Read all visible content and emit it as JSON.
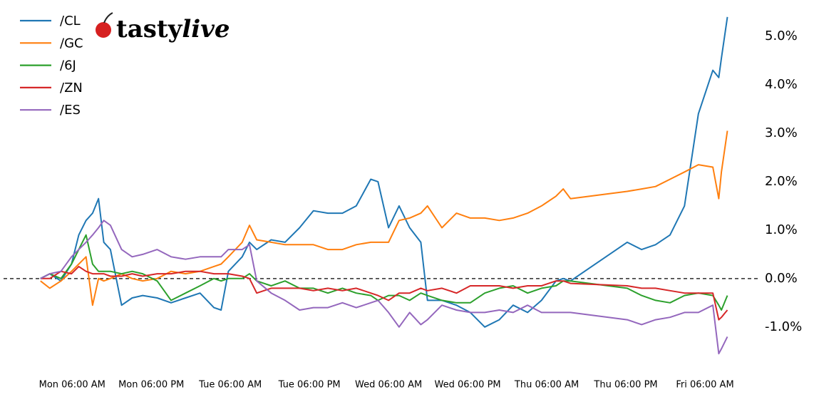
{
  "chart_data": {
    "type": "line",
    "logo": {
      "prefix": "tasty",
      "suffix": "live"
    },
    "x": [
      1.2,
      2.6,
      4.3,
      5.9,
      7.0,
      8.1,
      9.1,
      10.0,
      10.8,
      11.8,
      13.5,
      15.1,
      16.7,
      18.9,
      21.0,
      23.2,
      25.4,
      27.5,
      28.6,
      29.7,
      31.8,
      32.9,
      34.0,
      36.2,
      38.3,
      40.5,
      42.6,
      44.8,
      47.0,
      49.1,
      51.3,
      52.4,
      54.0,
      55.6,
      57.2,
      58.9,
      59.9,
      62.1,
      64.3,
      66.4,
      68.6,
      70.8,
      72.9,
      75.1,
      77.2,
      79.4,
      80.5,
      81.6,
      90.2,
      92.4,
      94.5,
      96.7,
      98.9,
      101.0,
      103.2,
      104.1,
      104.5,
      105.4
    ],
    "series": [
      {
        "name": "/CL",
        "color": "#1f77b4",
        "values": [
          0,
          0.1,
          -0.05,
          0.3,
          0.9,
          1.2,
          1.35,
          1.65,
          0.75,
          0.6,
          -0.55,
          -0.4,
          -0.35,
          -0.4,
          -0.5,
          -0.4,
          -0.3,
          -0.6,
          -0.65,
          0.15,
          0.45,
          0.75,
          0.6,
          0.8,
          0.75,
          1.05,
          1.4,
          1.35,
          1.35,
          1.5,
          2.05,
          2.0,
          1.05,
          1.5,
          1.05,
          0.75,
          -0.45,
          -0.45,
          -0.55,
          -0.7,
          -1.0,
          -0.85,
          -0.55,
          -0.7,
          -0.45,
          -0.05,
          0.0,
          -0.05,
          0.75,
          0.6,
          0.7,
          0.9,
          1.5,
          3.4,
          4.3,
          4.15,
          4.55,
          5.4
        ]
      },
      {
        "name": "/GC",
        "color": "#ff7f0e",
        "values": [
          -0.05,
          -0.2,
          -0.05,
          0.15,
          0.3,
          0.45,
          -0.55,
          0,
          -0.05,
          0,
          0.1,
          0,
          -0.05,
          0,
          0.15,
          0.1,
          0.15,
          0.25,
          0.3,
          0.45,
          0.75,
          1.1,
          0.8,
          0.75,
          0.7,
          0.7,
          0.7,
          0.6,
          0.6,
          0.7,
          0.75,
          0.75,
          0.75,
          1.2,
          1.25,
          1.35,
          1.5,
          1.05,
          1.35,
          1.25,
          1.25,
          1.2,
          1.25,
          1.35,
          1.5,
          1.7,
          1.85,
          1.65,
          1.8,
          1.85,
          1.9,
          2.05,
          2.2,
          2.35,
          2.3,
          1.65,
          2.2,
          3.05
        ]
      },
      {
        "name": "/6J",
        "color": "#2ca02c",
        "values": [
          0,
          0.1,
          0,
          0.3,
          0.6,
          0.9,
          0.3,
          0.15,
          0.15,
          0.15,
          0.1,
          0.15,
          0.1,
          -0.05,
          -0.45,
          -0.3,
          -0.15,
          0,
          -0.05,
          0,
          0,
          0.1,
          -0.05,
          -0.15,
          -0.05,
          -0.2,
          -0.2,
          -0.3,
          -0.2,
          -0.3,
          -0.35,
          -0.45,
          -0.35,
          -0.35,
          -0.45,
          -0.3,
          -0.35,
          -0.45,
          -0.5,
          -0.5,
          -0.3,
          -0.2,
          -0.15,
          -0.3,
          -0.2,
          -0.15,
          -0.05,
          -0.05,
          -0.2,
          -0.35,
          -0.45,
          -0.5,
          -0.35,
          -0.3,
          -0.35,
          -0.55,
          -0.65,
          -0.35
        ]
      },
      {
        "name": "/ZN",
        "color": "#d62728",
        "values": [
          0,
          0,
          0.15,
          0.1,
          0.25,
          0.15,
          0.1,
          0.1,
          0.1,
          0.05,
          0.05,
          0.1,
          0.05,
          0.1,
          0.1,
          0.15,
          0.15,
          0.1,
          0.1,
          0.1,
          0.05,
          0,
          -0.3,
          -0.2,
          -0.2,
          -0.2,
          -0.25,
          -0.2,
          -0.25,
          -0.2,
          -0.3,
          -0.35,
          -0.45,
          -0.3,
          -0.3,
          -0.2,
          -0.25,
          -0.2,
          -0.3,
          -0.15,
          -0.15,
          -0.15,
          -0.2,
          -0.15,
          -0.15,
          -0.05,
          -0.05,
          -0.1,
          -0.15,
          -0.2,
          -0.2,
          -0.25,
          -0.3,
          -0.3,
          -0.3,
          -0.85,
          -0.8,
          -0.65
        ]
      },
      {
        "name": "/ES",
        "color": "#9467bd",
        "values": [
          0,
          0.1,
          0.15,
          0.45,
          0.6,
          0.75,
          0.9,
          1.05,
          1.2,
          1.1,
          0.6,
          0.45,
          0.5,
          0.6,
          0.45,
          0.4,
          0.45,
          0.45,
          0.45,
          0.6,
          0.6,
          0.7,
          -0.05,
          -0.3,
          -0.45,
          -0.65,
          -0.6,
          -0.6,
          -0.5,
          -0.6,
          -0.5,
          -0.45,
          -0.7,
          -1.0,
          -0.7,
          -0.95,
          -0.85,
          -0.55,
          -0.65,
          -0.7,
          -0.7,
          -0.65,
          -0.7,
          -0.55,
          -0.7,
          -0.7,
          -0.7,
          -0.7,
          -0.85,
          -0.95,
          -0.85,
          -0.8,
          -0.7,
          -0.7,
          -0.55,
          -1.55,
          -1.45,
          -1.2
        ]
      }
    ],
    "xlim": [
      1,
      106
    ],
    "xticks": [
      {
        "value": 6,
        "label": "Mon 06:00 AM"
      },
      {
        "value": 18,
        "label": "Mon 06:00 PM"
      },
      {
        "value": 30,
        "label": "Tue 06:00 AM"
      },
      {
        "value": 42,
        "label": "Tue 06:00 PM"
      },
      {
        "value": 54,
        "label": "Wed 06:00 AM"
      },
      {
        "value": 66,
        "label": "Wed 06:00 PM"
      },
      {
        "value": 78,
        "label": "Thu 06:00 AM"
      },
      {
        "value": 90,
        "label": "Thu 06:00 PM"
      },
      {
        "value": 102,
        "label": "Fri 06:00 AM"
      }
    ],
    "ylim": [
      -1.9,
      5.75
    ],
    "yticks": [
      {
        "value": -1,
        "label": "-1.0%"
      },
      {
        "value": 0,
        "label": "0.0%"
      },
      {
        "value": 1,
        "label": "1.0%"
      },
      {
        "value": 2,
        "label": "2.0%"
      },
      {
        "value": 3,
        "label": "3.0%"
      },
      {
        "value": 4,
        "label": "4.0%"
      },
      {
        "value": 5,
        "label": "5.0%"
      }
    ],
    "zero_line": true,
    "grid": false,
    "legend": "upper-left"
  }
}
